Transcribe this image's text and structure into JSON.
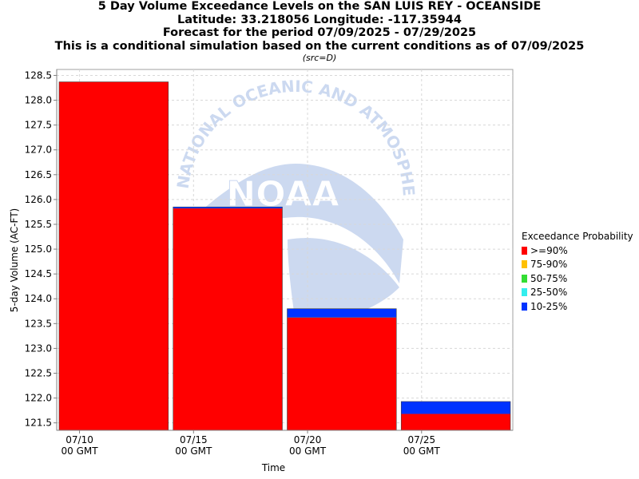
{
  "titles": {
    "line1": "5 Day Volume Exceedance Levels on the SAN LUIS REY - OCEANSIDE",
    "line2": "Latitude: 33.218056 Longitude: -117.35944",
    "line3": "Forecast for the period 07/09/2025 - 07/29/2025",
    "line4": "This is a conditional simulation based on the current conditions as of 07/09/2025",
    "src": "(src=D)"
  },
  "watermark": {
    "logo_text": "NOAA",
    "ring_text": "NATIONAL OCEANIC AND ATMOSPHERIC ADMINISTRATION"
  },
  "chart_data": {
    "type": "bar",
    "xlabel": "Time",
    "ylabel": "5-day Volume (AC-FT)",
    "ylim": [
      121.35,
      128.62
    ],
    "yticks": [
      "121.5",
      "122.0",
      "122.5",
      "123.0",
      "123.5",
      "124.0",
      "124.5",
      "125.0",
      "125.5",
      "126.0",
      "126.5",
      "127.0",
      "127.5",
      "128.0",
      "128.5"
    ],
    "xticks": [
      {
        "date": "07/10",
        "sub": "00 GMT"
      },
      {
        "date": "07/15",
        "sub": "00 GMT"
      },
      {
        "date": "07/20",
        "sub": "00 GMT"
      },
      {
        "date": "07/25",
        "sub": "00 GMT"
      }
    ],
    "grid": true,
    "legend_title": "Exceedance Probability",
    "legend_position": "right",
    "series": [
      {
        "name": ">=90%",
        "color": "#ff0000",
        "values": [
          128.37,
          125.82,
          123.62,
          121.68
        ]
      },
      {
        "name": "75-90%",
        "color": "#ffc000",
        "values": [
          128.37,
          125.82,
          123.62,
          121.68
        ]
      },
      {
        "name": "50-75%",
        "color": "#33dd33",
        "values": [
          128.37,
          125.82,
          123.62,
          121.68
        ]
      },
      {
        "name": "25-50%",
        "color": "#33eeee",
        "values": [
          128.37,
          125.82,
          123.62,
          121.68
        ]
      },
      {
        "name": "10-25%",
        "color": "#0033ff",
        "values": [
          128.37,
          125.85,
          123.8,
          121.93
        ]
      }
    ],
    "periods": [
      {
        "start": "07/09/2025",
        "end": "07/14/2025"
      },
      {
        "start": "07/14/2025",
        "end": "07/19/2025"
      },
      {
        "start": "07/19/2025",
        "end": "07/24/2025"
      },
      {
        "start": "07/24/2025",
        "end": "07/29/2025"
      }
    ]
  }
}
